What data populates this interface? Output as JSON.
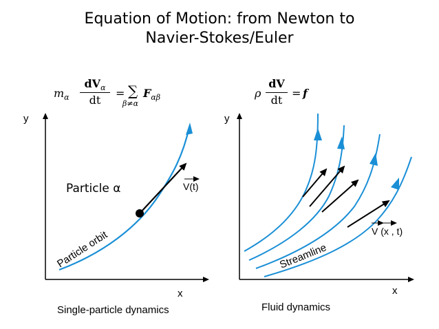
{
  "title": {
    "line1": "Equation of Motion: from Newton to",
    "line2": "Navier-Stokes/Euler"
  },
  "left_panel": {
    "equation": {
      "lhs_mass": "m",
      "lhs_mass_sub": "α",
      "numerator": "dV",
      "numerator_sub": "α",
      "denominator": "dt",
      "equals": "=",
      "sum": "∑",
      "sum_sub": "β≠α",
      "rhs": "F",
      "rhs_sub": "αβ"
    },
    "y_label": "y",
    "x_label": "x",
    "particle_label": "Particle α",
    "velocity_label": "V(t)",
    "orbit_label": "Particle orbit",
    "caption": "Single-particle dynamics"
  },
  "right_panel": {
    "equation": {
      "density": "ρ",
      "numerator": "dV",
      "denominator": "dt",
      "equals": "=",
      "rhs": "f"
    },
    "y_label": "y",
    "x_label": "x",
    "velocity_label": "V (x , t)",
    "streamline_label": "Streamline",
    "caption": "Fluid dynamics"
  },
  "colors": {
    "curve": "#1a8fd6",
    "arrow": "#000000",
    "axis": "#000000",
    "background": "#ffffff"
  }
}
